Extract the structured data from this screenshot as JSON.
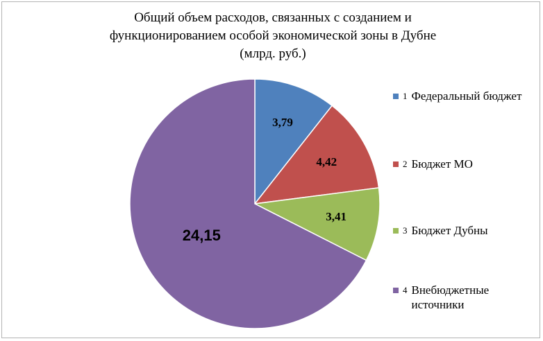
{
  "chart_data": {
    "type": "pie",
    "title_lines": [
      "Общий объем расходов, связанных с созданием и",
      "функционированием особой экономической зоны в Дубне",
      "(млрд. руб.)"
    ],
    "categories": [
      "Федеральный бюджет",
      "Бюджет МО",
      "Бюджет Дубны",
      "Внебюджетные\nисточники"
    ],
    "legend_numbers": [
      "1",
      "2",
      "3",
      "4"
    ],
    "values": [
      3.79,
      4.42,
      3.41,
      24.15
    ],
    "value_labels": [
      "3,79",
      "4,42",
      "3,41",
      "24,15"
    ],
    "colors": [
      "#4f81bd",
      "#c0504d",
      "#9bbb59",
      "#8064a2"
    ],
    "legend_position": "right",
    "start_angle_deg": 0,
    "direction": "clockwise"
  }
}
